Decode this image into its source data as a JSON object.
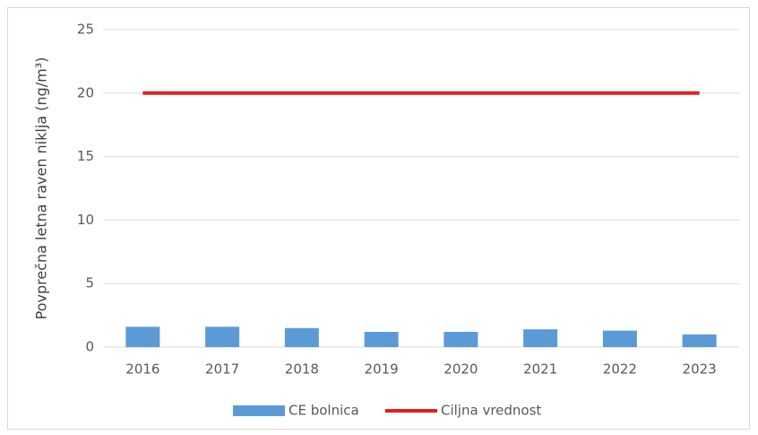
{
  "chart_data": {
    "type": "bar",
    "y_label": "Povprečna letna raven niklja (ng/m³)",
    "categories": [
      "2016",
      "2017",
      "2018",
      "2019",
      "2020",
      "2021",
      "2022",
      "2023"
    ],
    "series": [
      {
        "name": "CE bolnica",
        "type": "bar",
        "color": "#5b9bd5",
        "values": [
          1.6,
          1.6,
          1.5,
          1.2,
          1.2,
          1.4,
          1.3,
          1.0
        ]
      },
      {
        "name": "Ciljna vrednost",
        "type": "line",
        "color": "#e31e24",
        "values": [
          20,
          20,
          20,
          20,
          20,
          20,
          20,
          20
        ]
      }
    ],
    "ylim": [
      0,
      25
    ],
    "yticks": [
      0,
      5,
      10,
      15,
      20,
      25
    ],
    "grid": true,
    "legend": "bottom"
  }
}
